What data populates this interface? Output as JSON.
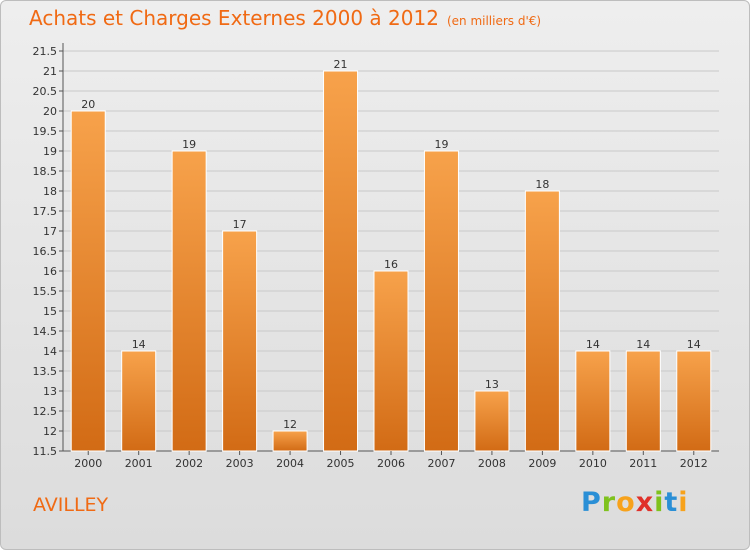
{
  "header": {
    "title": "Achats et Charges Externes 2000 à 2012",
    "unit": "(en milliers d'€)"
  },
  "footer": {
    "town": "AVILLEY",
    "logo_letters": [
      {
        "ch": "P",
        "color": "#2a8fd6"
      },
      {
        "ch": "r",
        "color": "#7fc21d"
      },
      {
        "ch": "o",
        "color": "#f7a21b"
      },
      {
        "ch": "x",
        "color": "#e0312a"
      },
      {
        "ch": "i",
        "color": "#7fc21d"
      },
      {
        "ch": "t",
        "color": "#2a8fd6"
      },
      {
        "ch": "i",
        "color": "#f7a21b"
      }
    ]
  },
  "chart_data": {
    "type": "bar",
    "categories": [
      "2000",
      "2001",
      "2002",
      "2003",
      "2004",
      "2005",
      "2006",
      "2007",
      "2008",
      "2009",
      "2010",
      "2011",
      "2012"
    ],
    "values": [
      20,
      14,
      19,
      17,
      12,
      21,
      16,
      19,
      13,
      18,
      14,
      14,
      14
    ],
    "title": "Achats et Charges Externes 2000 à 2012",
    "xlabel": "",
    "ylabel": "",
    "ylim": [
      11.5,
      21.5
    ],
    "yticks": [
      "11.5",
      "12",
      "12.5",
      "13",
      "13.5",
      "14",
      "14.5",
      "15",
      "15.5",
      "16",
      "16.5",
      "17",
      "17.5",
      "18",
      "18.5",
      "19",
      "19.5",
      "20",
      "20.5",
      "21",
      "21.5"
    ],
    "grid": true,
    "bar_color_top": "#f7a24b",
    "bar_color_bottom": "#d26b15"
  }
}
